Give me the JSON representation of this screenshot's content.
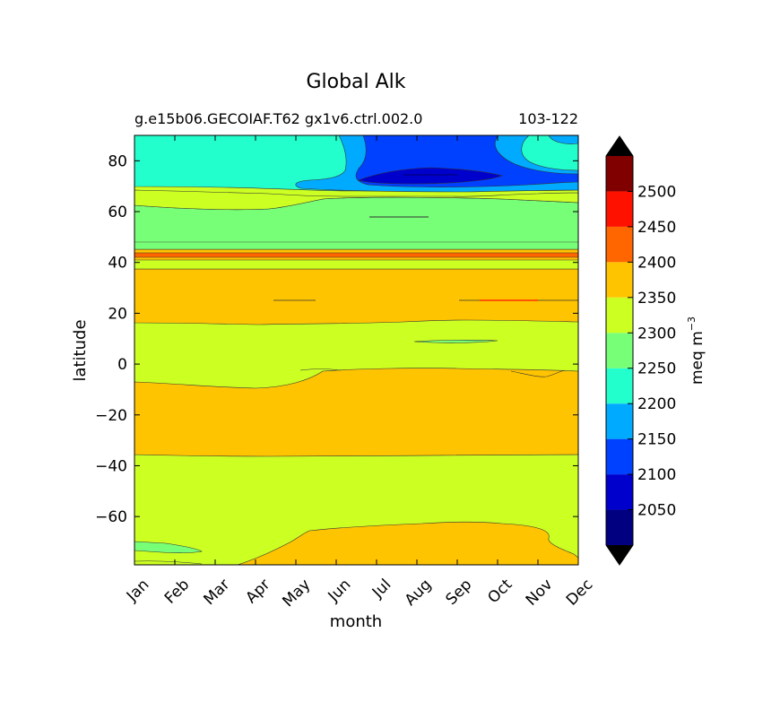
{
  "chart_data": {
    "type": "contour",
    "title": "Global Alk",
    "subtitle_left": "g.e15b06.GECOIAF.T62 gx1v6.ctrl.002.0",
    "subtitle_right": "103-122",
    "xlabel": "month",
    "ylabel": "latitude",
    "x_ticks": [
      "Jan",
      "Feb",
      "Mar",
      "Apr",
      "May",
      "Jun",
      "Jul",
      "Aug",
      "Sep",
      "Oct",
      "Nov",
      "Dec"
    ],
    "y_ticks": [
      80,
      60,
      40,
      20,
      0,
      -20,
      -40,
      -60
    ],
    "ylim": [
      -79,
      90
    ],
    "colorbar": {
      "label": "meq m",
      "label_sup": "−3",
      "ticks": [
        2500,
        2450,
        2400,
        2350,
        2300,
        2250,
        2200,
        2150,
        2100,
        2050
      ],
      "levels": [
        2000,
        2025,
        2050,
        2075,
        2100,
        2125,
        2150,
        2175,
        2200,
        2225,
        2250,
        2275,
        2300,
        2325,
        2350,
        2375,
        2400,
        2425,
        2450,
        2475,
        2500,
        2525,
        2550
      ],
      "bin_colors": [
        "#000080",
        "#0000cd",
        "#0040ff",
        "#00aaff",
        "#22ffcc",
        "#77ff77",
        "#ccff22",
        "#ffc400",
        "#ff6600",
        "#ff1100",
        "#800000"
      ],
      "under_color": "#000000",
      "over_color": "#000000"
    },
    "bands": [
      {
        "value": 2340,
        "lat_from": -79,
        "lat_to": 90
      },
      {
        "value": 2300,
        "lat_from": -79,
        "lat_to": -35
      },
      {
        "value": 2250,
        "lat_from": -73,
        "lat_to": -70,
        "months": [
          "Jan",
          "Feb"
        ]
      },
      {
        "value": 2350,
        "lat_from": -79,
        "lat_to": -62,
        "months": [
          "May",
          "Jun",
          "Jul",
          "Aug",
          "Sep",
          "Oct",
          "Nov",
          "Dec"
        ]
      },
      {
        "value": 2300,
        "lat_from": -8,
        "lat_to": 17
      },
      {
        "value": 2300,
        "lat_from": 37,
        "lat_to": 45
      },
      {
        "value": 2400,
        "lat_from": 41,
        "lat_to": 44
      },
      {
        "value": 2250,
        "lat_from": 45,
        "lat_to": 67
      },
      {
        "value": 2300,
        "lat_from": 64,
        "lat_to": 70
      },
      {
        "value": 2200,
        "lat_from": 70,
        "lat_to": 90
      },
      {
        "value": 2150,
        "lat_from": 72,
        "lat_to": 90,
        "months": [
          "Jul",
          "Aug",
          "Sep",
          "Oct",
          "Nov",
          "Dec"
        ]
      },
      {
        "value": 2100,
        "lat_from": 70,
        "lat_to": 77,
        "months": [
          "Jul",
          "Aug",
          "Sep",
          "Oct"
        ]
      },
      {
        "value": 2050,
        "lat_from": 72,
        "lat_to": 76,
        "months": [
          "Jul",
          "Aug",
          "Sep"
        ]
      }
    ]
  }
}
